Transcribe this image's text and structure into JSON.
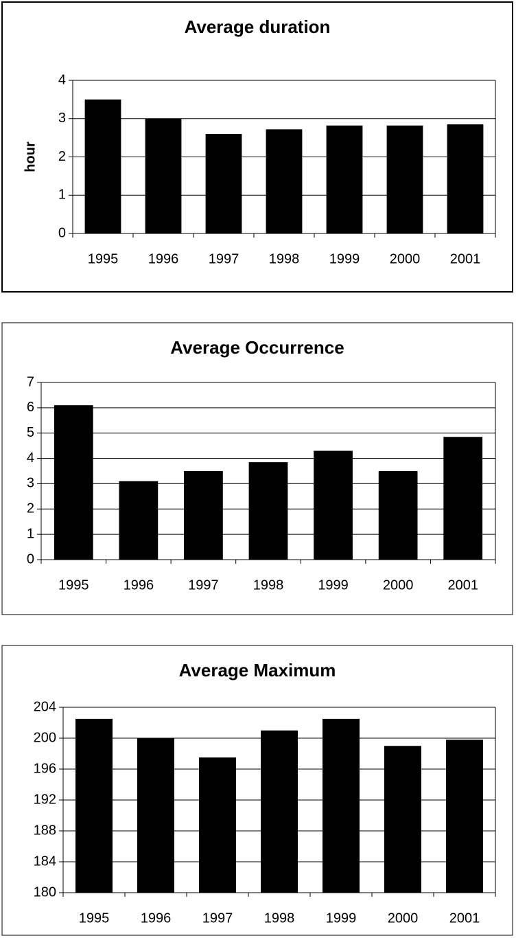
{
  "chart_data": [
    {
      "type": "bar",
      "title": "Average duration",
      "y_label": "hour",
      "categories": [
        "1995",
        "1996",
        "1997",
        "1998",
        "1999",
        "2000",
        "2001"
      ],
      "values": [
        3.5,
        3.0,
        2.6,
        2.72,
        2.82,
        2.82,
        2.85
      ],
      "color": "#000000",
      "ylim": [
        0,
        4
      ],
      "yticks": [
        0,
        1,
        2,
        3,
        4
      ],
      "grid": true
    },
    {
      "type": "bar",
      "title": "Average Occurrence",
      "categories": [
        "1995",
        "1996",
        "1997",
        "1998",
        "1999",
        "2000",
        "2001"
      ],
      "values": [
        6.1,
        3.1,
        3.5,
        3.85,
        4.3,
        3.5,
        4.85
      ],
      "color": "#000000",
      "ylim": [
        0,
        7
      ],
      "yticks": [
        0,
        1,
        2,
        3,
        4,
        5,
        6,
        7
      ],
      "grid": true
    },
    {
      "type": "bar",
      "title": "Average Maximum",
      "categories": [
        "1995",
        "1996",
        "1997",
        "1998",
        "1999",
        "2000",
        "2001"
      ],
      "values": [
        202.5,
        200,
        197.5,
        201,
        202.5,
        199,
        199.8
      ],
      "color": "#000000",
      "ylim": [
        180,
        204
      ],
      "yticks": [
        180,
        184,
        188,
        192,
        196,
        200,
        204
      ],
      "grid": true
    }
  ]
}
